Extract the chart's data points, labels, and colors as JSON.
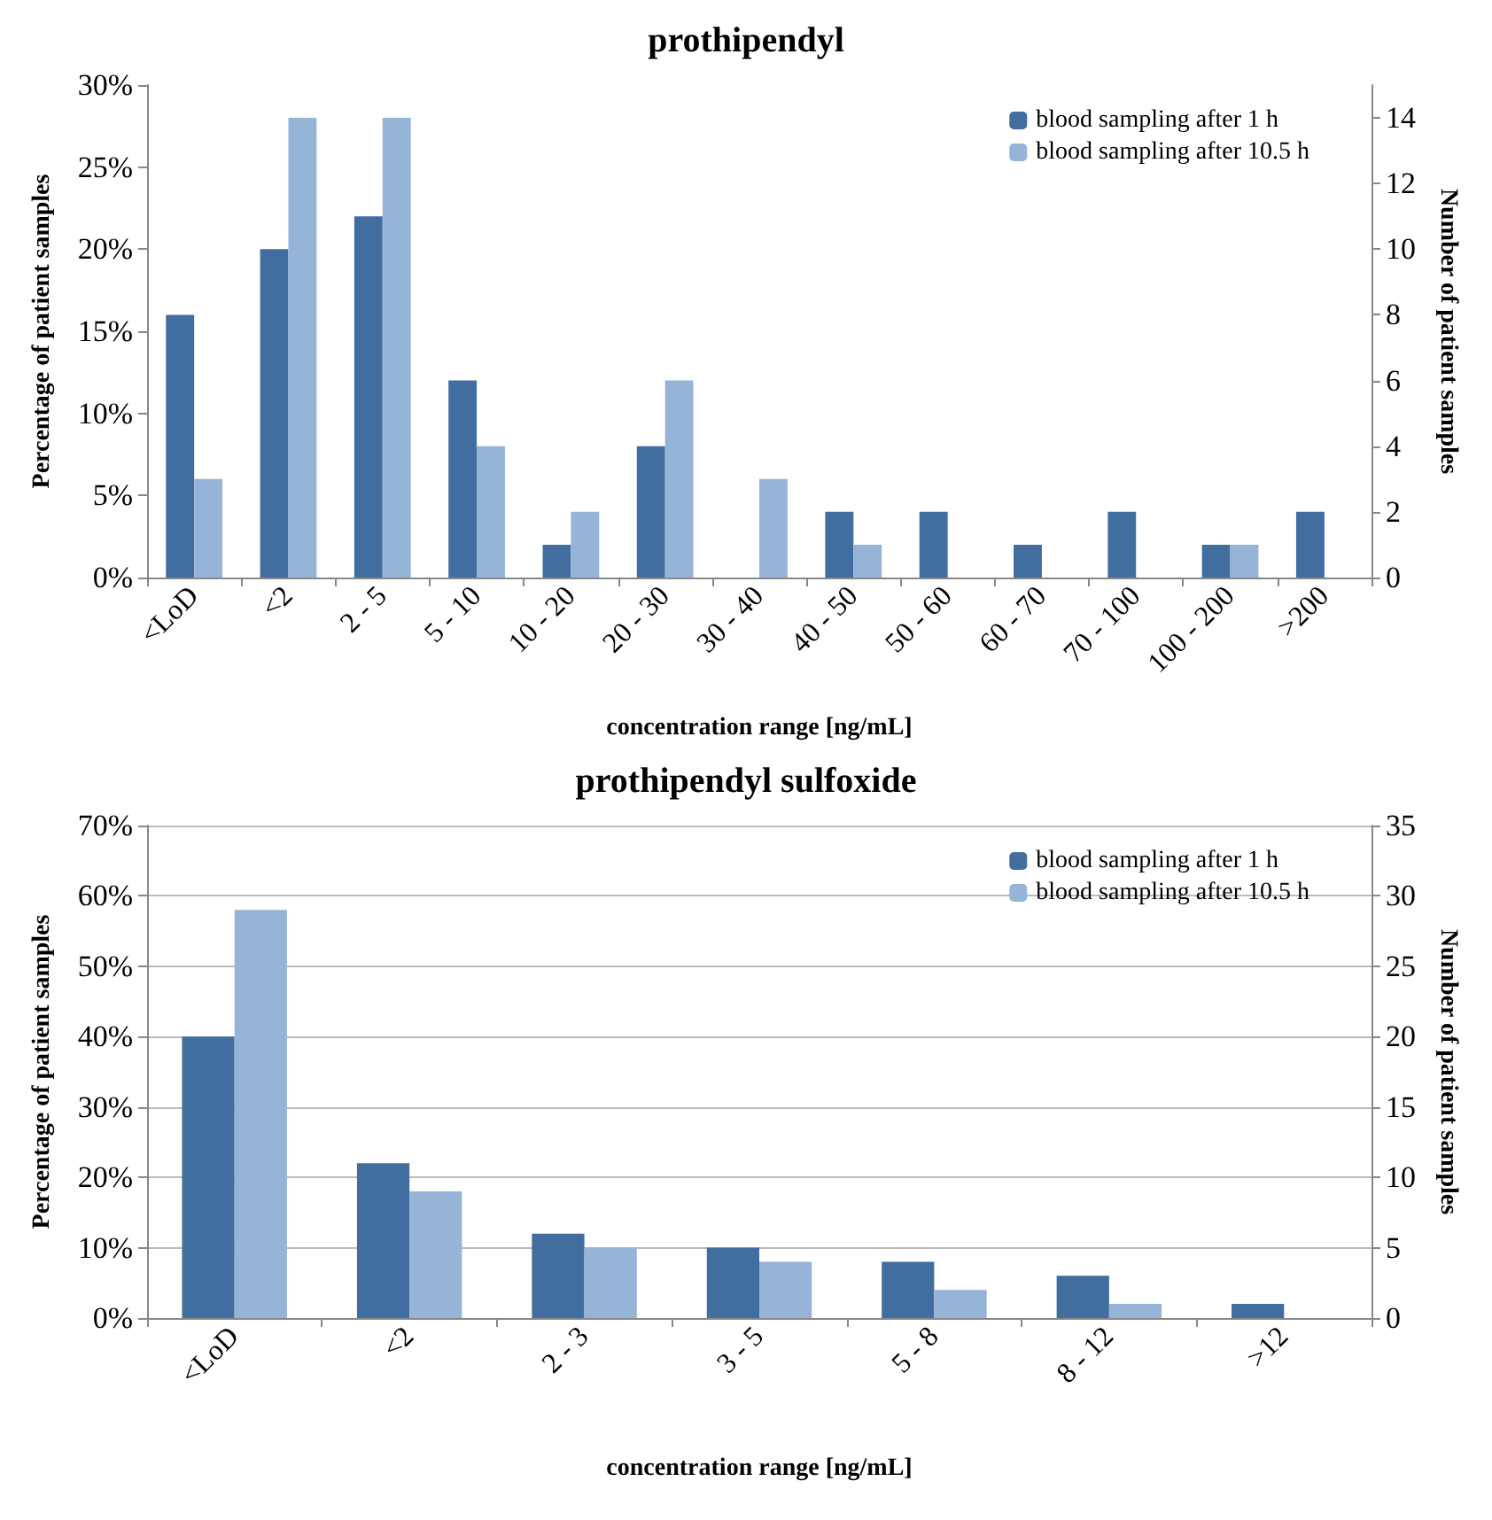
{
  "chart_data": [
    {
      "type": "bar",
      "title": "prothipendyl",
      "xlabel": "concentration range [ng/mL]",
      "ylabel": "Percentage of patient samples",
      "y2label": "Number of patient samples",
      "categories": [
        "<LoD",
        "<2",
        "2 - 5",
        "5 - 10",
        "10 - 20",
        "20 - 30",
        "30 - 40",
        "40 - 50",
        "50 - 60",
        "60 - 70",
        "70 - 100",
        "100 - 200",
        ">200"
      ],
      "series": [
        {
          "name": "blood sampling after 1 h",
          "color": "#416d9f",
          "values": [
            16,
            20,
            22,
            12,
            2,
            8,
            0,
            4,
            4,
            2,
            4,
            2,
            4
          ]
        },
        {
          "name": "blood sampling after 10.5 h",
          "color": "#96b4d8",
          "values": [
            6,
            28,
            28,
            8,
            4,
            12,
            6,
            2,
            0,
            0,
            0,
            2,
            0
          ]
        }
      ],
      "ylim": [
        0,
        30
      ],
      "yticks": [
        {
          "value": 0,
          "label": "0%"
        },
        {
          "value": 5,
          "label": "5%"
        },
        {
          "value": 10,
          "label": "10%"
        },
        {
          "value": 15,
          "label": "15%"
        },
        {
          "value": 20,
          "label": "20%"
        },
        {
          "value": 25,
          "label": "25%"
        },
        {
          "value": 30,
          "label": "30%"
        }
      ],
      "y2lim": [
        0,
        15
      ],
      "y2ticks": [
        0,
        2,
        4,
        6,
        8,
        10,
        12,
        14
      ],
      "grid": false,
      "legend": "top right"
    },
    {
      "type": "bar",
      "title": "prothipendyl sulfoxide",
      "xlabel": "concentration range [ng/mL]",
      "ylabel": "Percentage of patient samples",
      "y2label": "Number of patient samples",
      "categories": [
        "<LoD",
        "<2",
        "2 - 3",
        "3 - 5",
        "5 - 8",
        "8 - 12",
        ">12"
      ],
      "series": [
        {
          "name": "blood sampling after 1 h",
          "color": "#416d9f",
          "values": [
            40,
            22,
            12,
            10,
            8,
            6,
            2
          ]
        },
        {
          "name": "blood sampling after 10.5 h",
          "color": "#96b4d8",
          "values": [
            58,
            18,
            10,
            8,
            4,
            2,
            0
          ]
        }
      ],
      "ylim": [
        0,
        70
      ],
      "yticks": [
        {
          "value": 0,
          "label": "0%"
        },
        {
          "value": 10,
          "label": "10%"
        },
        {
          "value": 20,
          "label": "20%"
        },
        {
          "value": 30,
          "label": "30%"
        },
        {
          "value": 40,
          "label": "40%"
        },
        {
          "value": 50,
          "label": "50%"
        },
        {
          "value": 60,
          "label": "60%"
        },
        {
          "value": 70,
          "label": "70%"
        }
      ],
      "y2lim": [
        0,
        35
      ],
      "y2ticks": [
        0,
        5,
        10,
        15,
        20,
        25,
        30,
        35
      ],
      "grid": "y",
      "legend": "top right"
    }
  ]
}
